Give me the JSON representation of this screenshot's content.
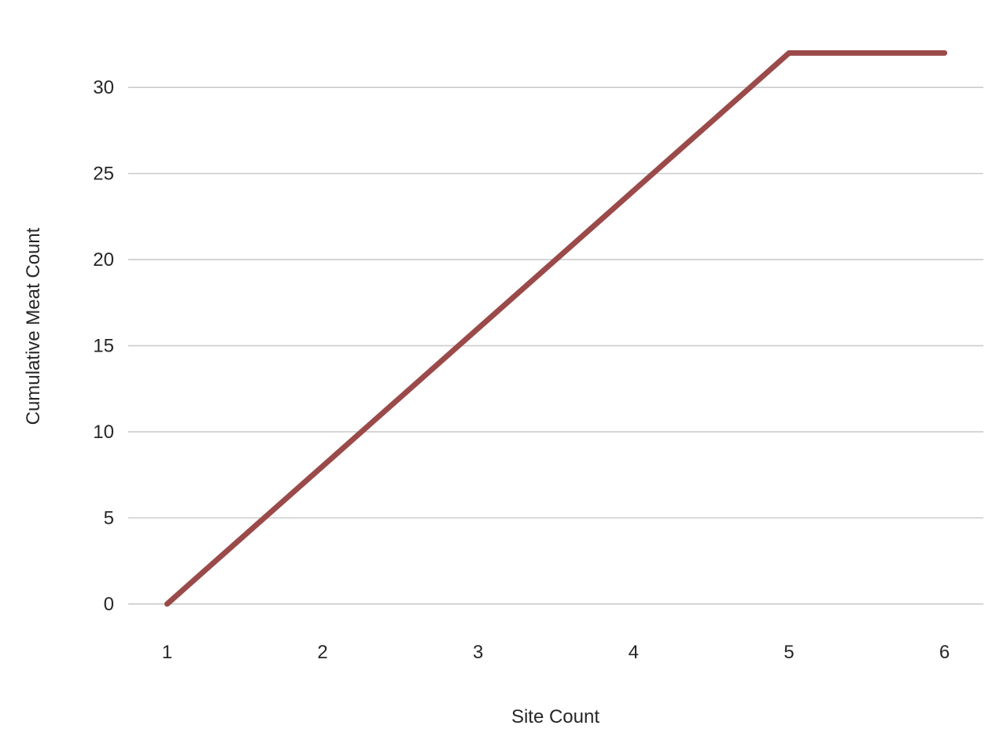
{
  "chart_data": {
    "type": "line",
    "title": "",
    "xlabel": "Site Count",
    "ylabel": "Cumulative Meat Count",
    "x": [
      1,
      2,
      3,
      4,
      5,
      6
    ],
    "series": [
      {
        "values": [
          0,
          8,
          16,
          24,
          32,
          32
        ],
        "color": "#9b4a4a"
      }
    ],
    "xticks": [
      "1",
      "2",
      "3",
      "4",
      "5",
      "6"
    ],
    "yticks": [
      "0",
      "5",
      "10",
      "15",
      "20",
      "25",
      "30"
    ],
    "xlim": [
      0.75,
      6.25
    ],
    "ylim": [
      -1.6,
      32.2
    ],
    "grid": {
      "x": false,
      "y": true
    },
    "legend": "none"
  }
}
